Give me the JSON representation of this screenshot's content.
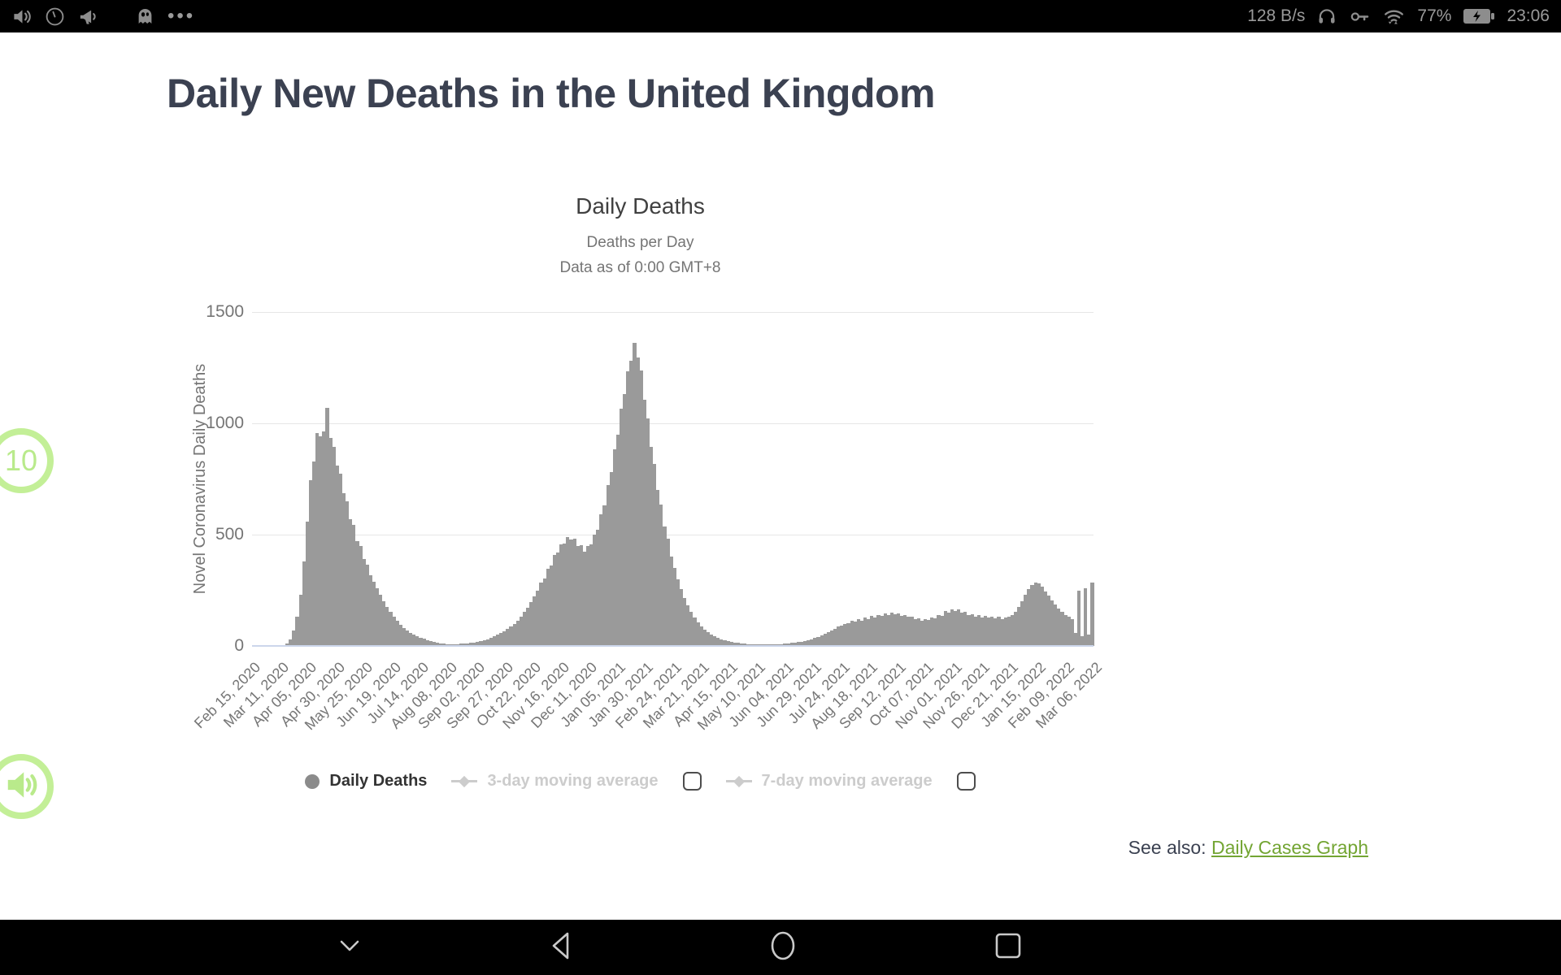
{
  "colors": {
    "bar_gray": "#9a9a9a",
    "link_green": "#73a533",
    "overlay_green": "#c3ef97",
    "title_dark": "#3b4151"
  },
  "status_bar": {
    "left_icons": [
      "volume-icon",
      "clock-icon",
      "megaphone-icon",
      "ghost-icon",
      "more-dots"
    ],
    "network_speed": "128 B/s",
    "right_icons": [
      "headphones-icon",
      "key-icon",
      "wifi-data-icon",
      "battery-charging-icon"
    ],
    "battery_percent": "77%",
    "time": "23:06"
  },
  "page": {
    "title": "Daily New Deaths in the United Kingdom",
    "see_also_label": "See also:",
    "see_also_link": "Daily Cases Graph"
  },
  "chart_data": {
    "type": "bar",
    "title": "Daily Deaths",
    "subtitle1": "Deaths per Day",
    "subtitle2": "Data as of 0:00 GMT+8",
    "ylabel": "Novel Coronavirus Daily Deaths",
    "xlabel": "",
    "ylim": [
      0,
      1500
    ],
    "y_ticks": [
      1500,
      1000,
      500,
      0
    ],
    "grid": "horizontal",
    "legend_position": "bottom",
    "series_name": "Daily Deaths",
    "start_date": "Feb 15, 2020",
    "end_date": "Mar 10, 2022",
    "sample_interval_days": 3,
    "x_tick_labels": [
      "Feb 15, 2020",
      "Mar 11, 2020",
      "Apr 05, 2020",
      "Apr 30, 2020",
      "May 25, 2020",
      "Jun 19, 2020",
      "Jul 14, 2020",
      "Aug 08, 2020",
      "Sep 02, 2020",
      "Sep 27, 2020",
      "Oct 22, 2020",
      "Nov 16, 2020",
      "Dec 11, 2020",
      "Jan 05, 2021",
      "Jan 30, 2021",
      "Feb 24, 2021",
      "Mar 21, 2021",
      "Apr 15, 2021",
      "May 10, 2021",
      "Jun 04, 2021",
      "Jun 29, 2021",
      "Jul 24, 2021",
      "Aug 18, 2021",
      "Sep 12, 2021",
      "Oct 07, 2021",
      "Nov 01, 2021",
      "Nov 26, 2021",
      "Dec 21, 2021",
      "Jan 15, 2022",
      "Feb 09, 2022",
      "Mar 06, 2022"
    ],
    "values": [
      0,
      0,
      0,
      0,
      0,
      0,
      1,
      1,
      2,
      5,
      12,
      30,
      70,
      130,
      230,
      380,
      560,
      745,
      830,
      955,
      940,
      965,
      1070,
      935,
      895,
      810,
      775,
      685,
      650,
      570,
      545,
      470,
      450,
      390,
      365,
      318,
      290,
      260,
      230,
      200,
      175,
      152,
      130,
      112,
      96,
      82,
      70,
      60,
      52,
      45,
      38,
      32,
      27,
      22,
      18,
      15,
      12,
      10,
      9,
      8,
      8,
      9,
      10,
      11,
      12,
      14,
      16,
      18,
      21,
      25,
      30,
      36,
      43,
      50,
      58,
      67,
      77,
      88,
      100,
      115,
      132,
      152,
      173,
      196,
      222,
      250,
      285,
      302,
      348,
      362,
      408,
      418,
      455,
      460,
      488,
      478,
      482,
      448,
      452,
      425,
      448,
      455,
      500,
      522,
      590,
      632,
      722,
      780,
      885,
      950,
      1065,
      1130,
      1235,
      1280,
      1360,
      1295,
      1238,
      1105,
      1022,
      895,
      818,
      700,
      635,
      535,
      480,
      400,
      350,
      300,
      255,
      215,
      182,
      152,
      127,
      105,
      88,
      74,
      62,
      52,
      44,
      37,
      31,
      26,
      22,
      19,
      16,
      14,
      12,
      10,
      9,
      8,
      7,
      7,
      6,
      6,
      6,
      7,
      7,
      8,
      9,
      10,
      12,
      13,
      15,
      18,
      20,
      23,
      27,
      31,
      36,
      42,
      48,
      55,
      62,
      70,
      78,
      86,
      92,
      98,
      104,
      112,
      108,
      120,
      115,
      128,
      122,
      134,
      128,
      140,
      134,
      146,
      139,
      150,
      141,
      146,
      135,
      140,
      130,
      132,
      122,
      125,
      115,
      120,
      116,
      126,
      124,
      140,
      136,
      156,
      148,
      166,
      158,
      165,
      150,
      154,
      140,
      143,
      132,
      138,
      128,
      135,
      126,
      133,
      124,
      130,
      120,
      126,
      130,
      140,
      155,
      175,
      200,
      230,
      255,
      275,
      285,
      280,
      265,
      245,
      225,
      205,
      185,
      168,
      152,
      140,
      130,
      122,
      60,
      250,
      45,
      260,
      50,
      285
    ],
    "legend": [
      {
        "label": "Daily Deaths",
        "active": true,
        "marker": "circle"
      },
      {
        "label": "3-day moving average",
        "active": false,
        "marker": "line-diamond",
        "checkbox": "unchecked"
      },
      {
        "label": "7-day moving average",
        "active": false,
        "marker": "line-diamond",
        "checkbox": "unchecked"
      }
    ]
  },
  "nav_bar": {
    "icons": [
      "chevron-down-icon",
      "back-icon",
      "home-icon",
      "recents-icon"
    ]
  },
  "overlay": {
    "badge_value": "10"
  }
}
